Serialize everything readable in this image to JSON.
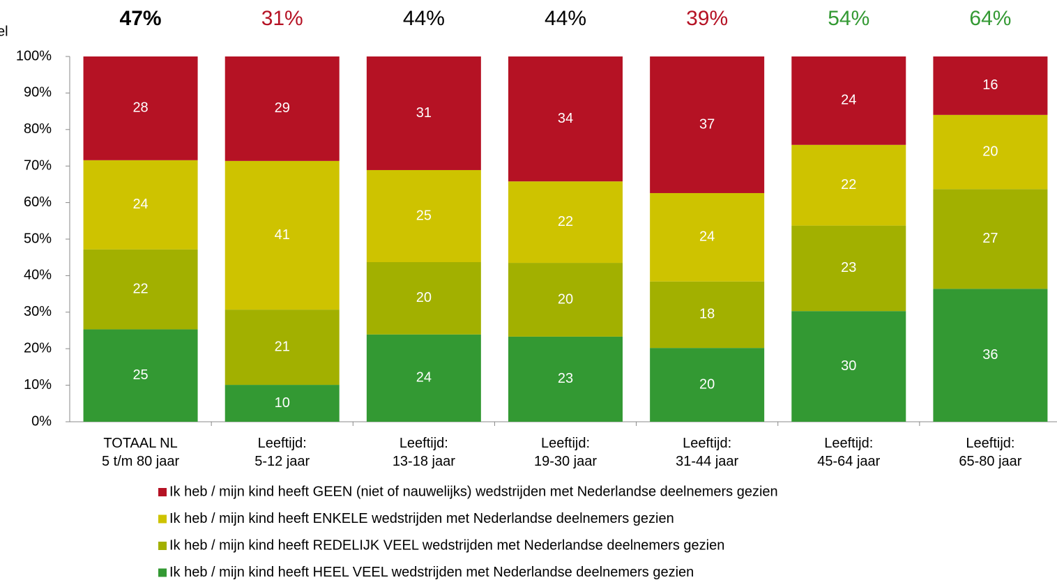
{
  "chart_data": {
    "type": "stacked_bar",
    "y_label": "el",
    "categories": [
      "TOTAAL NL\n5 t/m 80 jaar",
      "Leeftijd:\n5-12 jaar",
      "Leeftijd:\n13-18 jaar",
      "Leeftijd:\n19-30 jaar",
      "Leeftijd:\n31-44 jaar",
      "Leeftijd:\n45-64 jaar",
      "Leeftijd:\n65-80 jaar"
    ],
    "annotations": [
      {
        "text": "47%",
        "color": "#000000",
        "bold": true
      },
      {
        "text": "31%",
        "color": "#b51224",
        "bold": false
      },
      {
        "text": "44%",
        "color": "#000000",
        "bold": false
      },
      {
        "text": "44%",
        "color": "#000000",
        "bold": false
      },
      {
        "text": "39%",
        "color": "#b51224",
        "bold": false
      },
      {
        "text": "54%",
        "color": "#339933",
        "bold": false
      },
      {
        "text": "64%",
        "color": "#339933",
        "bold": false
      }
    ],
    "series": [
      {
        "name": "Ik heb / mijn kind heeft HEEL VEEL wedstrijden met Nederlandse deelnemers gezien",
        "color": "#339933",
        "values": [
          25.3,
          10.1,
          23.9,
          23.3,
          20.2,
          30.3,
          36.4
        ],
        "value_labels": [
          "25",
          "10",
          "24",
          "23",
          "20",
          "30",
          "36"
        ]
      },
      {
        "name": "Ik heb / mijn kind heeft REDELIJK VEEL wedstrijden met Nederlandse deelnemers gezien",
        "color": "#a2b000",
        "values": [
          21.9,
          20.6,
          19.8,
          20.2,
          18.2,
          23.4,
          27.3
        ],
        "value_labels": [
          "22",
          "21",
          "20",
          "20",
          "18",
          "23",
          "27"
        ]
      },
      {
        "name": "Ik heb / mijn kind heeft ENKELE wedstrijden met Nederlandse deelnemers gezien",
        "color": "#cec300",
        "values": [
          24.4,
          40.7,
          25.2,
          22.3,
          24.2,
          22.1,
          20.3
        ],
        "value_labels": [
          "24",
          "41",
          "25",
          "22",
          "24",
          "22",
          "20"
        ]
      },
      {
        "name": "Ik heb / mijn kind heeft GEEN (niet of nauwelijks) wedstrijden met Nederlandse deelnemers gezien",
        "color": "#b51224",
        "values": [
          28.4,
          28.6,
          31.1,
          34.2,
          37.4,
          24.2,
          16.0
        ],
        "value_labels": [
          "28",
          "29",
          "31",
          "34",
          "37",
          "24",
          "16"
        ]
      }
    ],
    "ylim": [
      0,
      100
    ],
    "yticks": [
      {
        "value": 0,
        "label": "0%"
      },
      {
        "value": 10,
        "label": "10%"
      },
      {
        "value": 20,
        "label": "20%"
      },
      {
        "value": 30,
        "label": "30%"
      },
      {
        "value": 40,
        "label": "40%"
      },
      {
        "value": 50,
        "label": "50%"
      },
      {
        "value": 60,
        "label": "60%"
      },
      {
        "value": 70,
        "label": "70%"
      },
      {
        "value": 80,
        "label": "80%"
      },
      {
        "value": 90,
        "label": "90%"
      },
      {
        "value": 100,
        "label": "100%"
      }
    ],
    "grid": false
  }
}
